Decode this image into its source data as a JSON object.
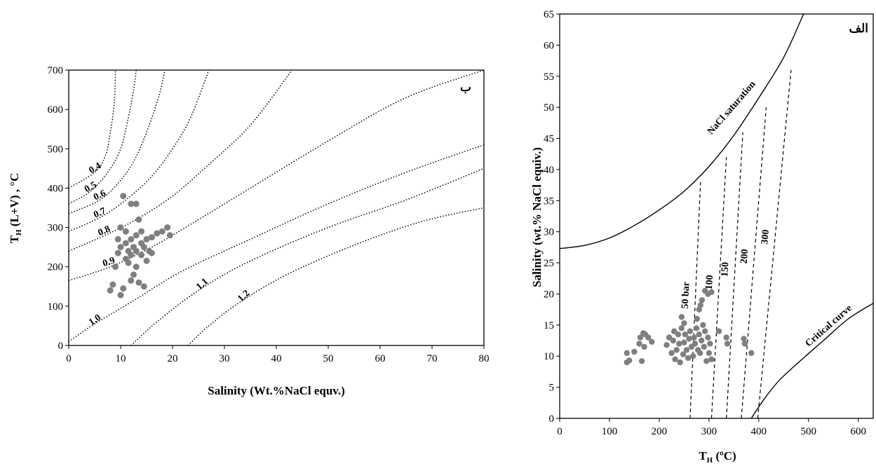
{
  "chart_data": [
    {
      "type": "scatter",
      "panel_label": "ب",
      "xlabel_parts": [
        "Salinity (Wt.%NaCl equv.)"
      ],
      "ylabel_parts": [
        "T",
        "H",
        " (L+V) , °C"
      ],
      "xlim": [
        0,
        80
      ],
      "ylim": [
        0,
        700
      ],
      "xticks": [
        0,
        10,
        20,
        30,
        40,
        50,
        60,
        70,
        80
      ],
      "yticks": [
        0,
        100,
        200,
        300,
        400,
        500,
        600,
        700
      ],
      "density_lines": [
        {
          "label": "0.4",
          "points": [
            [
              0,
              400
            ],
            [
              5,
              440
            ],
            [
              7,
              480
            ],
            [
              8,
              540
            ],
            [
              8.8,
              620
            ],
            [
              9,
              700
            ]
          ]
        },
        {
          "label": "0.5",
          "points": [
            [
              0,
              360
            ],
            [
              4,
              390
            ],
            [
              7.5,
              440
            ],
            [
              10,
              500
            ],
            [
              11.5,
              580
            ],
            [
              12.5,
              650
            ],
            [
              13,
              700
            ]
          ]
        },
        {
          "label": "0.6",
          "points": [
            [
              0,
              335
            ],
            [
              6,
              370
            ],
            [
              10,
              420
            ],
            [
              13,
              480
            ],
            [
              15.5,
              560
            ],
            [
              17.5,
              640
            ],
            [
              18.5,
              700
            ]
          ]
        },
        {
          "label": "0.7",
          "points": [
            [
              0,
              290
            ],
            [
              6,
              325
            ],
            [
              11,
              370
            ],
            [
              16,
              430
            ],
            [
              20,
              500
            ],
            [
              23.5,
              580
            ],
            [
              27,
              700
            ]
          ]
        },
        {
          "label": "0.8",
          "points": [
            [
              0,
              240
            ],
            [
              7,
              280
            ],
            [
              13,
              320
            ],
            [
              20,
              380
            ],
            [
              27,
              460
            ],
            [
              35,
              560
            ],
            [
              43,
              700
            ]
          ]
        },
        {
          "label": "0.9",
          "points": [
            [
              0,
              165
            ],
            [
              8,
              200
            ],
            [
              16,
              250
            ],
            [
              25,
              320
            ],
            [
              35,
              400
            ],
            [
              50,
              520
            ],
            [
              65,
              630
            ],
            [
              80,
              700
            ]
          ]
        },
        {
          "label": "1.0",
          "points": [
            [
              0,
              10
            ],
            [
              5,
              55
            ],
            [
              12,
              110
            ],
            [
              22,
              190
            ],
            [
              35,
              270
            ],
            [
              50,
              360
            ],
            [
              65,
              440
            ],
            [
              80,
              510
            ]
          ]
        },
        {
          "label": "1.1",
          "points": [
            [
              12,
              0
            ],
            [
              17,
              60
            ],
            [
              25,
              140
            ],
            [
              35,
              215
            ],
            [
              50,
              300
            ],
            [
              65,
              370
            ],
            [
              80,
              450
            ]
          ]
        },
        {
          "label": "1.2",
          "points": [
            [
              23,
              0
            ],
            [
              27,
              50
            ],
            [
              33,
              110
            ],
            [
              42,
              180
            ],
            [
              55,
              255
            ],
            [
              68,
              315
            ],
            [
              80,
              350
            ]
          ]
        }
      ],
      "points": [
        [
          8,
          140
        ],
        [
          8.5,
          155
        ],
        [
          9,
          200
        ],
        [
          9.5,
          235
        ],
        [
          9.5,
          270
        ],
        [
          10,
          250
        ],
        [
          10,
          300
        ],
        [
          10,
          128
        ],
        [
          10.5,
          145
        ],
        [
          10.5,
          380
        ],
        [
          11,
          220
        ],
        [
          11,
          260
        ],
        [
          11,
          290
        ],
        [
          11.5,
          240
        ],
        [
          11.5,
          210
        ],
        [
          12,
          165
        ],
        [
          12,
          230
        ],
        [
          12,
          270
        ],
        [
          12,
          360
        ],
        [
          12.5,
          250
        ],
        [
          12.5,
          180
        ],
        [
          13,
          200
        ],
        [
          13,
          240
        ],
        [
          13,
          280
        ],
        [
          13,
          360
        ],
        [
          13.5,
          320
        ],
        [
          13.5,
          160
        ],
        [
          14,
          230
        ],
        [
          14,
          260
        ],
        [
          14,
          290
        ],
        [
          14.5,
          150
        ],
        [
          14.5,
          250
        ],
        [
          15,
          215
        ],
        [
          15,
          270
        ],
        [
          15.5,
          240
        ],
        [
          16,
          275
        ],
        [
          16,
          235
        ],
        [
          17,
          285
        ],
        [
          18,
          290
        ],
        [
          19,
          300
        ],
        [
          19.5,
          280
        ]
      ],
      "point_color": "#7f7f7f"
    },
    {
      "type": "scatter",
      "panel_label": "الف",
      "xlabel_parts": [
        "T",
        "H",
        " (ºC)"
      ],
      "ylabel_parts": [
        "Salinity (wt.% NaCl equiv.)"
      ],
      "xlim": [
        0,
        630
      ],
      "ylim": [
        0,
        65
      ],
      "xticks": [
        0,
        100,
        200,
        300,
        400,
        500,
        600
      ],
      "yticks": [
        0,
        5,
        10,
        15,
        20,
        25,
        30,
        35,
        40,
        45,
        50,
        55,
        60,
        65
      ],
      "saturation_curve": {
        "label": "NaCl saturation",
        "points": [
          [
            0,
            27.3
          ],
          [
            50,
            27.8
          ],
          [
            100,
            29
          ],
          [
            150,
            31
          ],
          [
            200,
            33.5
          ],
          [
            250,
            36.5
          ],
          [
            300,
            40.5
          ],
          [
            350,
            45.5
          ],
          [
            400,
            51.5
          ],
          [
            450,
            58
          ],
          [
            490,
            65
          ]
        ]
      },
      "critical_curve": {
        "label": "Critical curve",
        "points": [
          [
            385,
            0
          ],
          [
            410,
            3
          ],
          [
            440,
            6
          ],
          [
            480,
            9
          ],
          [
            530,
            12.5
          ],
          [
            580,
            16
          ],
          [
            630,
            18.5
          ]
        ]
      },
      "isobars": [
        {
          "label": "50 bar",
          "points": [
            [
              262,
              0
            ],
            [
              283,
              38
            ]
          ]
        },
        {
          "label": "100",
          "points": [
            [
              305,
              0
            ],
            [
              335,
              42
            ]
          ]
        },
        {
          "label": "150",
          "points": [
            [
              335,
              0
            ],
            [
              368,
              46
            ]
          ]
        },
        {
          "label": "200",
          "points": [
            [
              365,
              0
            ],
            [
              415,
              50
            ]
          ]
        },
        {
          "label": "300",
          "points": [
            [
              398,
              0
            ],
            [
              465,
              56
            ]
          ]
        }
      ],
      "points": [
        [
          135,
          9
        ],
        [
          135,
          10.5
        ],
        [
          140,
          9.3
        ],
        [
          150,
          10.7
        ],
        [
          160,
          12
        ],
        [
          162,
          13
        ],
        [
          165,
          9.2
        ],
        [
          168,
          13.7
        ],
        [
          170,
          11.5
        ],
        [
          172,
          13.5
        ],
        [
          178,
          13
        ],
        [
          185,
          12.3
        ],
        [
          215,
          11.8
        ],
        [
          220,
          13
        ],
        [
          225,
          10.5
        ],
        [
          228,
          12.5
        ],
        [
          230,
          14
        ],
        [
          232,
          9.5
        ],
        [
          235,
          11
        ],
        [
          238,
          13.5
        ],
        [
          240,
          12
        ],
        [
          242,
          9
        ],
        [
          245,
          14.5
        ],
        [
          248,
          10.3
        ],
        [
          250,
          12.2
        ],
        [
          252,
          13.5
        ],
        [
          255,
          11
        ],
        [
          258,
          9.7
        ],
        [
          260,
          12.8
        ],
        [
          262,
          14
        ],
        [
          265,
          11.5
        ],
        [
          268,
          10
        ],
        [
          270,
          13
        ],
        [
          272,
          12
        ],
        [
          275,
          14.5
        ],
        [
          278,
          11
        ],
        [
          280,
          13.5
        ],
        [
          282,
          10.5
        ],
        [
          285,
          12.5
        ],
        [
          288,
          15
        ],
        [
          290,
          11.5
        ],
        [
          292,
          14
        ],
        [
          295,
          9.2
        ],
        [
          298,
          13
        ],
        [
          300,
          10.5
        ],
        [
          302,
          12
        ],
        [
          305,
          9.5
        ],
        [
          276,
          16
        ],
        [
          280,
          17.5
        ],
        [
          283,
          18.2
        ],
        [
          286,
          19
        ],
        [
          292,
          20.5
        ],
        [
          298,
          20
        ],
        [
          305,
          20.3
        ],
        [
          320,
          14
        ],
        [
          335,
          13
        ],
        [
          337,
          12
        ],
        [
          370,
          12.8
        ],
        [
          372,
          12
        ],
        [
          385,
          10.5
        ],
        [
          245,
          16.3
        ],
        [
          250,
          15.3
        ]
      ],
      "point_color": "#7f7f7f"
    }
  ]
}
